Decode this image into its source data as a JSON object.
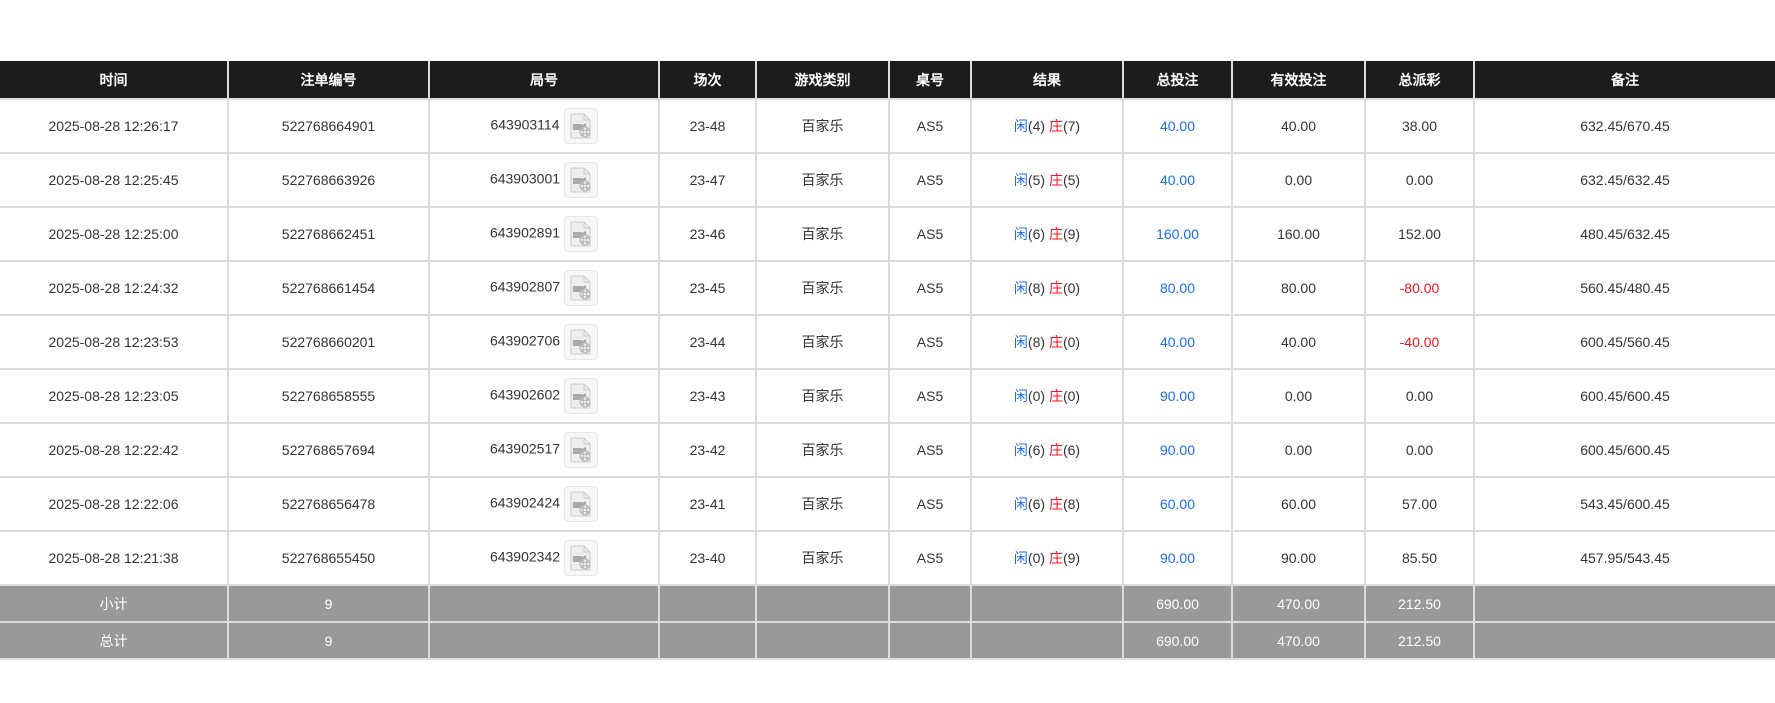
{
  "columns": [
    "时间",
    "注单编号",
    "局号",
    "场次",
    "游戏类别",
    "桌号",
    "结果",
    "总投注",
    "有效投注",
    "总派彩",
    "备注"
  ],
  "result_labels": {
    "player": "闲",
    "banker": "庄"
  },
  "colors": {
    "header_bg": "#1c1c1c",
    "blue": "#1a6cf0",
    "red": "#f5141e",
    "summary_bg": "#999999"
  },
  "rows": [
    {
      "time": "2025-08-28 12:26:17",
      "bet_id": "522768664901",
      "round": "643903114",
      "session": "23-48",
      "game": "百家乐",
      "table": "AS5",
      "player": "(4)",
      "banker": "(7)",
      "total_bet": "40.00",
      "valid_bet": "40.00",
      "payout": "38.00",
      "payout_negative": false,
      "note": "632.45/670.45"
    },
    {
      "time": "2025-08-28 12:25:45",
      "bet_id": "522768663926",
      "round": "643903001",
      "session": "23-47",
      "game": "百家乐",
      "table": "AS5",
      "player": "(5)",
      "banker": "(5)",
      "total_bet": "40.00",
      "valid_bet": "0.00",
      "payout": "0.00",
      "payout_negative": false,
      "note": "632.45/632.45"
    },
    {
      "time": "2025-08-28 12:25:00",
      "bet_id": "522768662451",
      "round": "643902891",
      "session": "23-46",
      "game": "百家乐",
      "table": "AS5",
      "player": "(6)",
      "banker": "(9)",
      "total_bet": "160.00",
      "valid_bet": "160.00",
      "payout": "152.00",
      "payout_negative": false,
      "note": "480.45/632.45"
    },
    {
      "time": "2025-08-28 12:24:32",
      "bet_id": "522768661454",
      "round": "643902807",
      "session": "23-45",
      "game": "百家乐",
      "table": "AS5",
      "player": "(8)",
      "banker": "(0)",
      "total_bet": "80.00",
      "valid_bet": "80.00",
      "payout": "-80.00",
      "payout_negative": true,
      "note": "560.45/480.45"
    },
    {
      "time": "2025-08-28 12:23:53",
      "bet_id": "522768660201",
      "round": "643902706",
      "session": "23-44",
      "game": "百家乐",
      "table": "AS5",
      "player": "(8)",
      "banker": "(0)",
      "total_bet": "40.00",
      "valid_bet": "40.00",
      "payout": "-40.00",
      "payout_negative": true,
      "note": "600.45/560.45"
    },
    {
      "time": "2025-08-28 12:23:05",
      "bet_id": "522768658555",
      "round": "643902602",
      "session": "23-43",
      "game": "百家乐",
      "table": "AS5",
      "player": "(0)",
      "banker": "(0)",
      "total_bet": "90.00",
      "valid_bet": "0.00",
      "payout": "0.00",
      "payout_negative": false,
      "note": "600.45/600.45"
    },
    {
      "time": "2025-08-28 12:22:42",
      "bet_id": "522768657694",
      "round": "643902517",
      "session": "23-42",
      "game": "百家乐",
      "table": "AS5",
      "player": "(6)",
      "banker": "(6)",
      "total_bet": "90.00",
      "valid_bet": "0.00",
      "payout": "0.00",
      "payout_negative": false,
      "note": "600.45/600.45"
    },
    {
      "time": "2025-08-28 12:22:06",
      "bet_id": "522768656478",
      "round": "643902424",
      "session": "23-41",
      "game": "百家乐",
      "table": "AS5",
      "player": "(6)",
      "banker": "(8)",
      "total_bet": "60.00",
      "valid_bet": "60.00",
      "payout": "57.00",
      "payout_negative": false,
      "note": "543.45/600.45"
    },
    {
      "time": "2025-08-28 12:21:38",
      "bet_id": "522768655450",
      "round": "643902342",
      "session": "23-40",
      "game": "百家乐",
      "table": "AS5",
      "player": "(0)",
      "banker": "(9)",
      "total_bet": "90.00",
      "valid_bet": "90.00",
      "payout": "85.50",
      "payout_negative": false,
      "note": "457.95/543.45"
    }
  ],
  "subtotal": {
    "label": "小计",
    "count": "9",
    "total_bet": "690.00",
    "valid_bet": "470.00",
    "payout": "212.50"
  },
  "total": {
    "label": "总计",
    "count": "9",
    "total_bet": "690.00",
    "valid_bet": "470.00",
    "payout": "212.50"
  }
}
